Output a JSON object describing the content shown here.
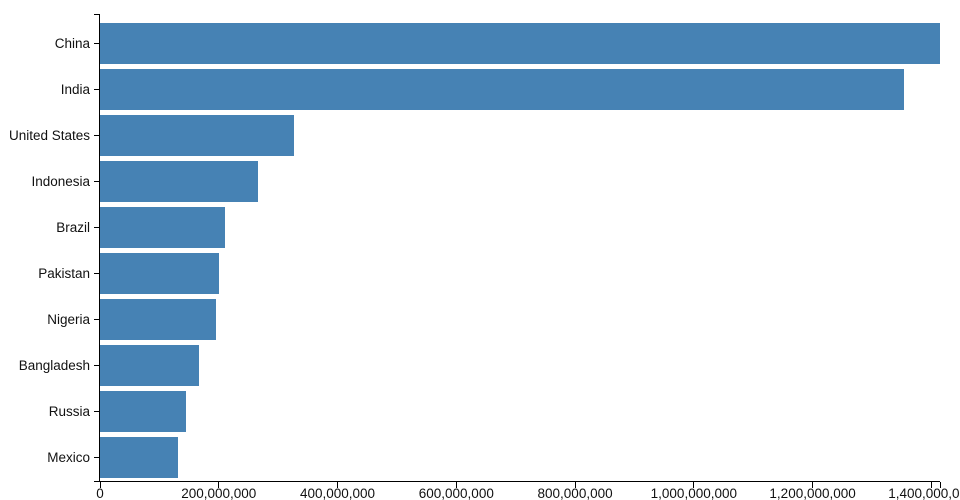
{
  "chart_data": {
    "type": "bar",
    "orientation": "horizontal",
    "title": "",
    "xlabel": "",
    "ylabel": "",
    "grid": false,
    "legend": false,
    "categories": [
      "China",
      "India",
      "United States",
      "Indonesia",
      "Brazil",
      "Pakistan",
      "Nigeria",
      "Bangladesh",
      "Russia",
      "Mexico"
    ],
    "values": [
      1415045928,
      1354051854,
      326766748,
      266794980,
      210867954,
      200813818,
      195875237,
      166368149,
      143964709,
      130759074
    ],
    "xlim": [
      0,
      1415045928
    ],
    "x_ticks": [
      0,
      200000000,
      400000000,
      600000000,
      800000000,
      1000000000,
      1200000000,
      1400000000
    ],
    "x_tick_labels": [
      "0",
      "200,000,000",
      "400,000,000",
      "600,000,000",
      "800,000,000",
      "1,000,000,000",
      "1,200,000,000",
      "1,400,000,000"
    ],
    "bar_color": "#4682b4",
    "axis_color": "#000000",
    "text_color": "#111111",
    "background_color": "#ffffff"
  }
}
